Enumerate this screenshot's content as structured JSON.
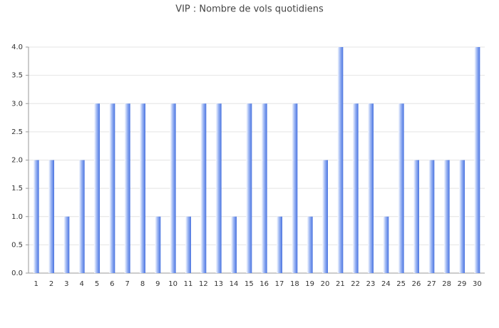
{
  "chart_data": {
    "type": "bar",
    "title": "VIP : Nombre de vols quotidiens",
    "categories": [
      "1",
      "2",
      "3",
      "4",
      "5",
      "6",
      "7",
      "8",
      "9",
      "10",
      "11",
      "12",
      "13",
      "14",
      "15",
      "16",
      "17",
      "18",
      "19",
      "20",
      "21",
      "22",
      "23",
      "24",
      "25",
      "26",
      "27",
      "28",
      "29",
      "30"
    ],
    "values": [
      2,
      2,
      1,
      2,
      3,
      3,
      3,
      3,
      1,
      3,
      1,
      3,
      3,
      1,
      3,
      3,
      1,
      3,
      1,
      2,
      4,
      3,
      3,
      1,
      3,
      2,
      2,
      2,
      2,
      4
    ],
    "color": "#4a74e0",
    "ylim": [
      0,
      4
    ],
    "yticks": [
      {
        "value": 0,
        "label": "0.0"
      },
      0.5,
      {
        "value": 1,
        "label": "1.0"
      },
      1.5,
      {
        "value": 2,
        "label": "2.0"
      },
      2.5,
      {
        "value": 3,
        "label": "3.0"
      },
      3.5,
      {
        "value": 4,
        "label": "4.0"
      }
    ],
    "grid": true
  }
}
